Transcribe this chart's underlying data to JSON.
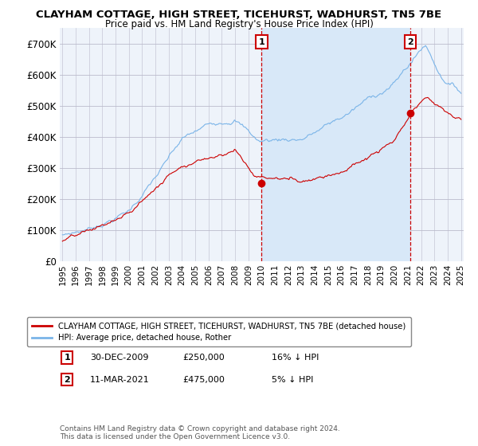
{
  "title": "CLAYHAM COTTAGE, HIGH STREET, TICEHURST, WADHURST, TN5 7BE",
  "subtitle": "Price paid vs. HM Land Registry's House Price Index (HPI)",
  "hpi_color": "#7ab4e8",
  "price_color": "#cc0000",
  "vline_color": "#cc0000",
  "highlight_color": "#d8e8f8",
  "ylim": [
    0,
    750000
  ],
  "yticks": [
    0,
    100000,
    200000,
    300000,
    400000,
    500000,
    600000,
    700000
  ],
  "ytick_labels": [
    "£0",
    "£100K",
    "£200K",
    "£300K",
    "£400K",
    "£500K",
    "£600K",
    "£700K"
  ],
  "xlim_start": 1994.8,
  "xlim_end": 2025.2,
  "sale1_x": 2009.99,
  "sale1_y": 250000,
  "sale2_x": 2021.2,
  "sale2_y": 475000,
  "legend_entries": [
    "CLAYHAM COTTAGE, HIGH STREET, TICEHURST, WADHURST, TN5 7BE (detached house)",
    "HPI: Average price, detached house, Rother"
  ],
  "annotation1": [
    "1",
    "30-DEC-2009",
    "£250,000",
    "16% ↓ HPI"
  ],
  "annotation2": [
    "2",
    "11-MAR-2021",
    "£475,000",
    "5% ↓ HPI"
  ],
  "footnote": "Contains HM Land Registry data © Crown copyright and database right 2024.\nThis data is licensed under the Open Government Licence v3.0.",
  "background_color": "#ffffff",
  "plot_bg_color": "#eef3fa"
}
